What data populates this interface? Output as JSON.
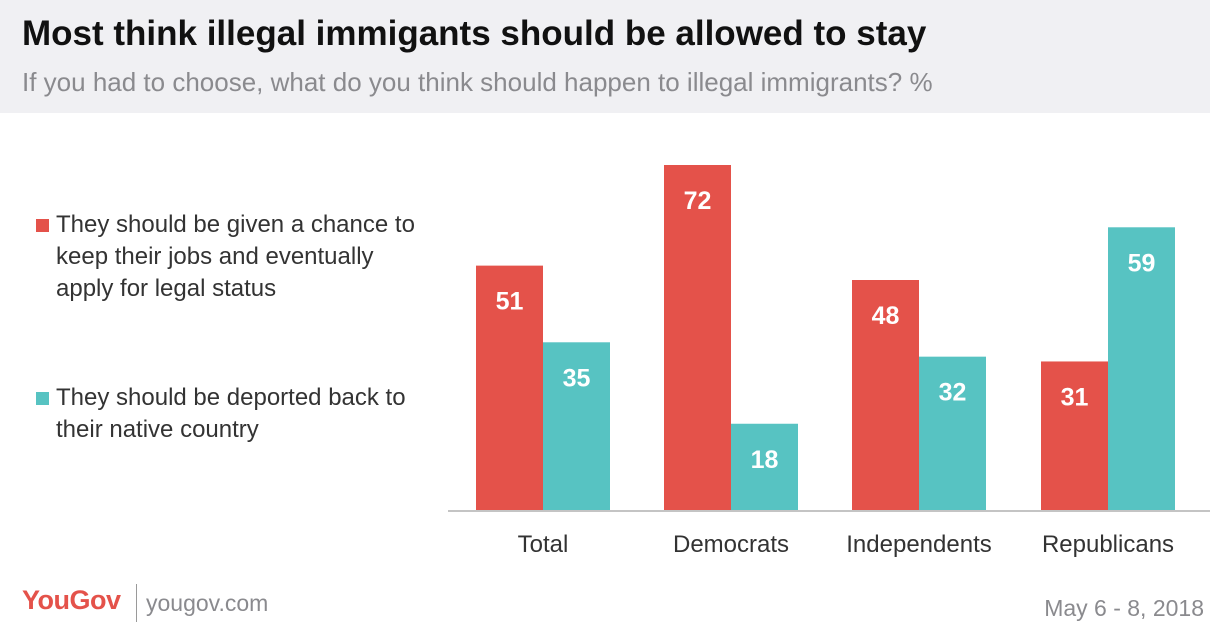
{
  "header": {
    "title": "Most think illegal immigants should be allowed to stay",
    "subtitle": "If you had to choose, what do you think should happen to illegal immigrants? %"
  },
  "footer": {
    "logo_text": "YouGov",
    "url": "yougov.com",
    "date": "May 6 - 8, 2018"
  },
  "colors": {
    "series1": "#e4524a",
    "series2": "#57c3c2"
  },
  "chart_data": {
    "type": "bar",
    "title": "Most think illegal immigants should be allowed to stay",
    "subtitle": "If you had to choose, what do you think should happen to illegal immigrants? %",
    "categories": [
      "Total",
      "Democrats",
      "Independents",
      "Republicans"
    ],
    "series": [
      {
        "name": "They should be given a chance to keep their jobs and eventually apply for legal status",
        "values": [
          51,
          72,
          48,
          31
        ]
      },
      {
        "name": "They should be deported back to their native country",
        "values": [
          35,
          18,
          32,
          59
        ]
      }
    ],
    "ylim": [
      0,
      72
    ],
    "grid": false,
    "legend_position": "left",
    "data_labels": true
  }
}
